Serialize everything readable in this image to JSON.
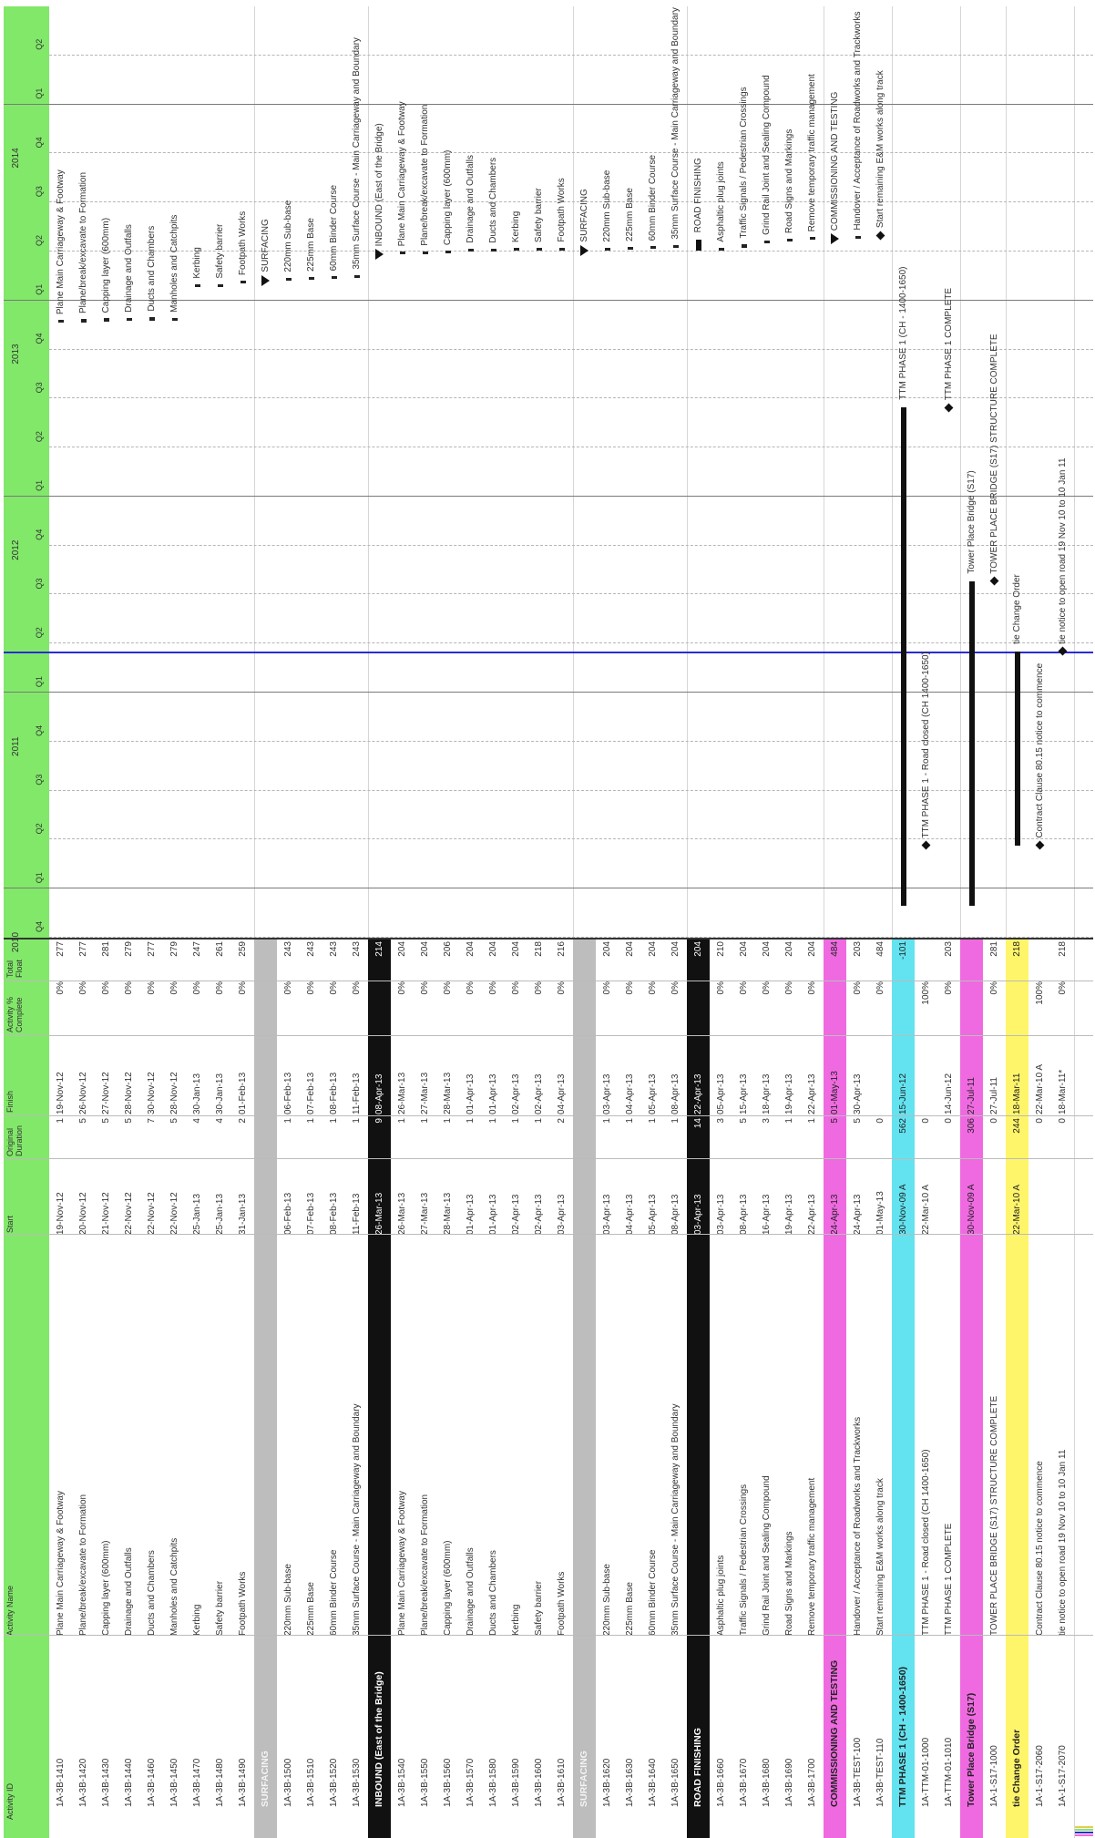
{
  "headers": {
    "id": "Activity ID",
    "name": "Activity Name",
    "start": "Start",
    "duration": "Original\nDuration",
    "finish": "Finish",
    "pct": "Activity %\nComplete",
    "float": "Total\nFloat"
  },
  "timescale": {
    "years": [
      "2010",
      "2011",
      "2012",
      "2013",
      "2014"
    ],
    "quarters": [
      "Q4",
      "Q1",
      "Q2",
      "Q3",
      "Q4",
      "Q1",
      "Q2",
      "Q3",
      "Q4",
      "Q1",
      "Q2",
      "Q3",
      "Q4",
      "Q1",
      "Q2",
      "Q3",
      "Q4",
      "Q1",
      "Q2"
    ]
  },
  "colors": {
    "header": "#82e86a",
    "grey_group": "#bdbdbd",
    "black_group": "#111111",
    "magenta_group": "#ef6ae0",
    "cyan_group": "#63e3f0",
    "yellow_group": "#fff56a",
    "data_date": "#2b2bd6"
  },
  "rows": [
    {
      "id": "1A-3B-1410",
      "name": "Plane Main Carriageway & Footway",
      "start": "19-Nov-12",
      "dur": "1",
      "finish": "19-Nov-12",
      "pct": "0%",
      "tf": "277",
      "g_start": "19-Nov-12",
      "g_finish": "19-Nov-12"
    },
    {
      "id": "1A-3B-1420",
      "name": "Plane/break/excavate to Formation",
      "start": "20-Nov-12",
      "dur": "5",
      "finish": "26-Nov-12",
      "pct": "0%",
      "tf": "277",
      "g_start": "20-Nov-12",
      "g_finish": "26-Nov-12"
    },
    {
      "id": "1A-3B-1430",
      "name": "Capping layer (600mm)",
      "start": "21-Nov-12",
      "dur": "5",
      "finish": "27-Nov-12",
      "pct": "0%",
      "tf": "281",
      "g_start": "21-Nov-12",
      "g_finish": "27-Nov-12"
    },
    {
      "id": "1A-3B-1440",
      "name": "Drainage and Outfalls",
      "start": "22-Nov-12",
      "dur": "5",
      "finish": "28-Nov-12",
      "pct": "0%",
      "tf": "279",
      "g_start": "22-Nov-12",
      "g_finish": "28-Nov-12"
    },
    {
      "id": "1A-3B-1460",
      "name": "Ducts and Chambers",
      "start": "22-Nov-12",
      "dur": "7",
      "finish": "30-Nov-12",
      "pct": "0%",
      "tf": "277",
      "g_start": "22-Nov-12",
      "g_finish": "30-Nov-12"
    },
    {
      "id": "1A-3B-1450",
      "name": "Manholes and Catchpits",
      "start": "22-Nov-12",
      "dur": "5",
      "finish": "28-Nov-12",
      "pct": "0%",
      "tf": "279",
      "g_start": "22-Nov-12",
      "g_finish": "28-Nov-12"
    },
    {
      "id": "1A-3B-1470",
      "name": "Kerbing",
      "start": "25-Jan-13",
      "dur": "4",
      "finish": "30-Jan-13",
      "pct": "0%",
      "tf": "247",
      "g_start": "25-Jan-13",
      "g_finish": "30-Jan-13"
    },
    {
      "id": "1A-3B-1480",
      "name": "Safety barrier",
      "start": "25-Jan-13",
      "dur": "4",
      "finish": "30-Jan-13",
      "pct": "0%",
      "tf": "261",
      "g_start": "25-Jan-13",
      "g_finish": "30-Jan-13"
    },
    {
      "id": "1A-3B-1490",
      "name": "Footpath Works",
      "start": "31-Jan-13",
      "dur": "2",
      "finish": "01-Feb-13",
      "pct": "0%",
      "tf": "259",
      "g_start": "31-Jan-13",
      "g_finish": "01-Feb-13"
    },
    {
      "id": "SURFACING",
      "name": "",
      "start": "",
      "dur": "",
      "finish": "",
      "pct": "",
      "tf": "",
      "group": "grey",
      "g_start": "06-Feb-13",
      "g_finish": "11-Feb-13",
      "g_label": "SURFACING",
      "g_kind": "summary"
    },
    {
      "id": "1A-3B-1500",
      "name": "220mm Sub-base",
      "start": "06-Feb-13",
      "dur": "1",
      "finish": "06-Feb-13",
      "pct": "0%",
      "tf": "243",
      "g_start": "06-Feb-13",
      "g_finish": "06-Feb-13"
    },
    {
      "id": "1A-3B-1510",
      "name": "225mm Base",
      "start": "07-Feb-13",
      "dur": "1",
      "finish": "07-Feb-13",
      "pct": "0%",
      "tf": "243",
      "g_start": "07-Feb-13",
      "g_finish": "07-Feb-13"
    },
    {
      "id": "1A-3B-1520",
      "name": "60mm Binder Course",
      "start": "08-Feb-13",
      "dur": "1",
      "finish": "08-Feb-13",
      "pct": "0%",
      "tf": "243",
      "g_start": "08-Feb-13",
      "g_finish": "08-Feb-13"
    },
    {
      "id": "1A-3B-1530",
      "name": "35mm Surface Course - Main Carriageway and Boundary",
      "start": "11-Feb-13",
      "dur": "1",
      "finish": "11-Feb-13",
      "pct": "0%",
      "tf": "243",
      "g_start": "11-Feb-13",
      "g_finish": "11-Feb-13"
    },
    {
      "id": "INBOUND (East of the Bridge)",
      "name": "",
      "start": "26-Mar-13",
      "dur": "9",
      "finish": "08-Apr-13",
      "pct": "",
      "tf": "214",
      "group": "black",
      "g_start": "26-Mar-13",
      "g_finish": "08-Apr-13",
      "g_label": "INBOUND (East of the Bridge)",
      "g_kind": "summary"
    },
    {
      "id": "1A-3B-1540",
      "name": "Plane Main Carriageway & Footway",
      "start": "26-Mar-13",
      "dur": "1",
      "finish": "26-Mar-13",
      "pct": "0%",
      "tf": "204",
      "g_start": "26-Mar-13",
      "g_finish": "26-Mar-13"
    },
    {
      "id": "1A-3B-1550",
      "name": "Plane/break/excavate to Formation",
      "start": "27-Mar-13",
      "dur": "1",
      "finish": "27-Mar-13",
      "pct": "0%",
      "tf": "204",
      "g_start": "27-Mar-13",
      "g_finish": "27-Mar-13"
    },
    {
      "id": "1A-3B-1560",
      "name": "Capping layer (600mm)",
      "start": "28-Mar-13",
      "dur": "1",
      "finish": "28-Mar-13",
      "pct": "0%",
      "tf": "206",
      "g_start": "28-Mar-13",
      "g_finish": "28-Mar-13"
    },
    {
      "id": "1A-3B-1570",
      "name": "Drainage and Outfalls",
      "start": "01-Apr-13",
      "dur": "1",
      "finish": "01-Apr-13",
      "pct": "0%",
      "tf": "204",
      "g_start": "01-Apr-13",
      "g_finish": "01-Apr-13"
    },
    {
      "id": "1A-3B-1580",
      "name": "Ducts and Chambers",
      "start": "01-Apr-13",
      "dur": "1",
      "finish": "01-Apr-13",
      "pct": "0%",
      "tf": "204",
      "g_start": "01-Apr-13",
      "g_finish": "01-Apr-13"
    },
    {
      "id": "1A-3B-1590",
      "name": "Kerbing",
      "start": "02-Apr-13",
      "dur": "1",
      "finish": "02-Apr-13",
      "pct": "0%",
      "tf": "204",
      "g_start": "02-Apr-13",
      "g_finish": "02-Apr-13"
    },
    {
      "id": "1A-3B-1600",
      "name": "Safety barrier",
      "start": "02-Apr-13",
      "dur": "1",
      "finish": "02-Apr-13",
      "pct": "0%",
      "tf": "218",
      "g_start": "02-Apr-13",
      "g_finish": "02-Apr-13"
    },
    {
      "id": "1A-3B-1610",
      "name": "Footpath Works",
      "start": "03-Apr-13",
      "dur": "2",
      "finish": "04-Apr-13",
      "pct": "0%",
      "tf": "216",
      "g_start": "03-Apr-13",
      "g_finish": "04-Apr-13"
    },
    {
      "id": "SURFACING",
      "name": "",
      "start": "",
      "dur": "",
      "finish": "",
      "pct": "",
      "tf": "",
      "group": "grey",
      "g_start": "03-Apr-13",
      "g_finish": "08-Apr-13",
      "g_label": "SURFACING",
      "g_kind": "summary"
    },
    {
      "id": "1A-3B-1620",
      "name": "220mm Sub-base",
      "start": "03-Apr-13",
      "dur": "1",
      "finish": "03-Apr-13",
      "pct": "0%",
      "tf": "204",
      "g_start": "03-Apr-13",
      "g_finish": "03-Apr-13"
    },
    {
      "id": "1A-3B-1630",
      "name": "225mm Base",
      "start": "04-Apr-13",
      "dur": "1",
      "finish": "04-Apr-13",
      "pct": "0%",
      "tf": "204",
      "g_start": "04-Apr-13",
      "g_finish": "04-Apr-13"
    },
    {
      "id": "1A-3B-1640",
      "name": "60mm Binder Course",
      "start": "05-Apr-13",
      "dur": "1",
      "finish": "05-Apr-13",
      "pct": "0%",
      "tf": "204",
      "g_start": "05-Apr-13",
      "g_finish": "05-Apr-13"
    },
    {
      "id": "1A-3B-1650",
      "name": "35mm Surface Course - Main Carriageway and Boundary",
      "start": "08-Apr-13",
      "dur": "1",
      "finish": "08-Apr-13",
      "pct": "0%",
      "tf": "204",
      "g_start": "08-Apr-13",
      "g_finish": "08-Apr-13"
    },
    {
      "id": "ROAD FINISHING",
      "name": "",
      "start": "03-Apr-13",
      "dur": "14",
      "finish": "22-Apr-13",
      "pct": "",
      "tf": "204",
      "group": "black",
      "g_start": "03-Apr-13",
      "g_finish": "22-Apr-13",
      "g_label": "ROAD FINISHING",
      "g_kind": "summary"
    },
    {
      "id": "1A-3B-1660",
      "name": "Asphaltic plug joints",
      "start": "03-Apr-13",
      "dur": "3",
      "finish": "05-Apr-13",
      "pct": "0%",
      "tf": "210",
      "g_start": "03-Apr-13",
      "g_finish": "05-Apr-13"
    },
    {
      "id": "1A-3B-1670",
      "name": "Traffic Signals / Pedestrian Crossings",
      "start": "08-Apr-13",
      "dur": "5",
      "finish": "15-Apr-13",
      "pct": "0%",
      "tf": "204",
      "g_start": "08-Apr-13",
      "g_finish": "15-Apr-13"
    },
    {
      "id": "1A-3B-1680",
      "name": "Grind Rail Joint and Sealing Compound",
      "start": "16-Apr-13",
      "dur": "3",
      "finish": "18-Apr-13",
      "pct": "0%",
      "tf": "204",
      "g_start": "16-Apr-13",
      "g_finish": "18-Apr-13"
    },
    {
      "id": "1A-3B-1690",
      "name": "Road Signs and Markings",
      "start": "19-Apr-13",
      "dur": "1",
      "finish": "19-Apr-13",
      "pct": "0%",
      "tf": "204",
      "g_start": "19-Apr-13",
      "g_finish": "19-Apr-13"
    },
    {
      "id": "1A-3B-1700",
      "name": "Remove temporary traffic management",
      "start": "22-Apr-13",
      "dur": "1",
      "finish": "22-Apr-13",
      "pct": "0%",
      "tf": "204",
      "g_start": "22-Apr-13",
      "g_finish": "22-Apr-13"
    },
    {
      "id": "COMMISSIONING AND TESTING",
      "name": "",
      "start": "24-Apr-13",
      "dur": "5",
      "finish": "01-May-13",
      "pct": "",
      "tf": "484",
      "group": "magenta",
      "g_start": "24-Apr-13",
      "g_finish": "01-May-13",
      "g_label": "COMMISSIONING AND TESTING",
      "g_kind": "summary"
    },
    {
      "id": "1A-3B-TEST-100",
      "name": "Handover / Acceptance of Roadworks and Trackworks",
      "start": "24-Apr-13",
      "dur": "5",
      "finish": "30-Apr-13",
      "pct": "0%",
      "tf": "203",
      "g_start": "24-Apr-13",
      "g_finish": "30-Apr-13"
    },
    {
      "id": "1A-3B-TEST-110",
      "name": "Start remaining E&M works along track",
      "start": "01-May-13",
      "dur": "0",
      "finish": "",
      "pct": "0%",
      "tf": "484",
      "g_start": "01-May-13",
      "g_finish": "01-May-13",
      "g_kind": "milestone"
    },
    {
      "id": "TTM PHASE 1 (CH - 1400-1650)",
      "name": "",
      "start": "30-Nov-09 A",
      "dur": "562",
      "finish": "15-Jun-12",
      "pct": "",
      "tf": "-101",
      "group": "cyan",
      "g_start": "30-Nov-09",
      "g_finish": "15-Jun-12",
      "g_label": "TTM PHASE 1 (CH - 1400-1650)",
      "g_kind": "summary"
    },
    {
      "id": "1A-TTM-01-1000",
      "name": "TTM PHASE 1 - Road closed (CH 1400-1650)",
      "start": "22-Mar-10 A",
      "dur": "0",
      "finish": "",
      "pct": "100%",
      "tf": "",
      "g_start": "22-Mar-10",
      "g_finish": "22-Mar-10",
      "g_kind": "milestone"
    },
    {
      "id": "1A-TTM-01-1010",
      "name": "TTM PHASE 1 COMPLETE",
      "start": "",
      "dur": "0",
      "finish": "14-Jun-12",
      "pct": "0%",
      "tf": "203",
      "g_start": "14-Jun-12",
      "g_finish": "14-Jun-12",
      "g_kind": "milestone"
    },
    {
      "id": "Tower Place Bridge (S17)",
      "name": "",
      "start": "30-Nov-09 A",
      "dur": "306",
      "finish": "27-Jul-11",
      "pct": "",
      "tf": "",
      "group": "magenta",
      "g_start": "30-Nov-09",
      "g_finish": "27-Jul-11",
      "g_label": "Tower Place Bridge (S17)",
      "g_kind": "summary"
    },
    {
      "id": "1A-1-S17-1000",
      "name": "TOWER PLACE BRIDGE (S17) STRUCTURE COMPLETE",
      "start": "",
      "dur": "0",
      "finish": "27-Jul-11",
      "pct": "0%",
      "tf": "281",
      "g_start": "27-Jul-11",
      "g_finish": "27-Jul-11",
      "g_kind": "milestone"
    },
    {
      "id": "tie Change Order",
      "name": "",
      "start": "22-Mar-10 A",
      "dur": "244",
      "finish": "18-Mar-11",
      "pct": "",
      "tf": "218",
      "group": "yellow",
      "g_start": "22-Mar-10",
      "g_finish": "18-Mar-11",
      "g_label": "tie Change Order",
      "g_kind": "summary"
    },
    {
      "id": "1A-1-S17-2060",
      "name": "Contract Clause 80.15 notice to commence",
      "start": "",
      "dur": "0",
      "finish": "22-Mar-10 A",
      "pct": "100%",
      "tf": "",
      "g_start": "22-Mar-10",
      "g_finish": "22-Mar-10",
      "g_kind": "milestone"
    },
    {
      "id": "1A-1-S17-2070",
      "name": "tie notice to open road 19 Nov 10 to 10 Jan 11",
      "start": "",
      "dur": "0",
      "finish": "18-Mar-11*",
      "pct": "0%",
      "tf": "218",
      "g_start": "18-Mar-11",
      "g_finish": "18-Mar-11",
      "g_kind": "milestone"
    }
  ]
}
